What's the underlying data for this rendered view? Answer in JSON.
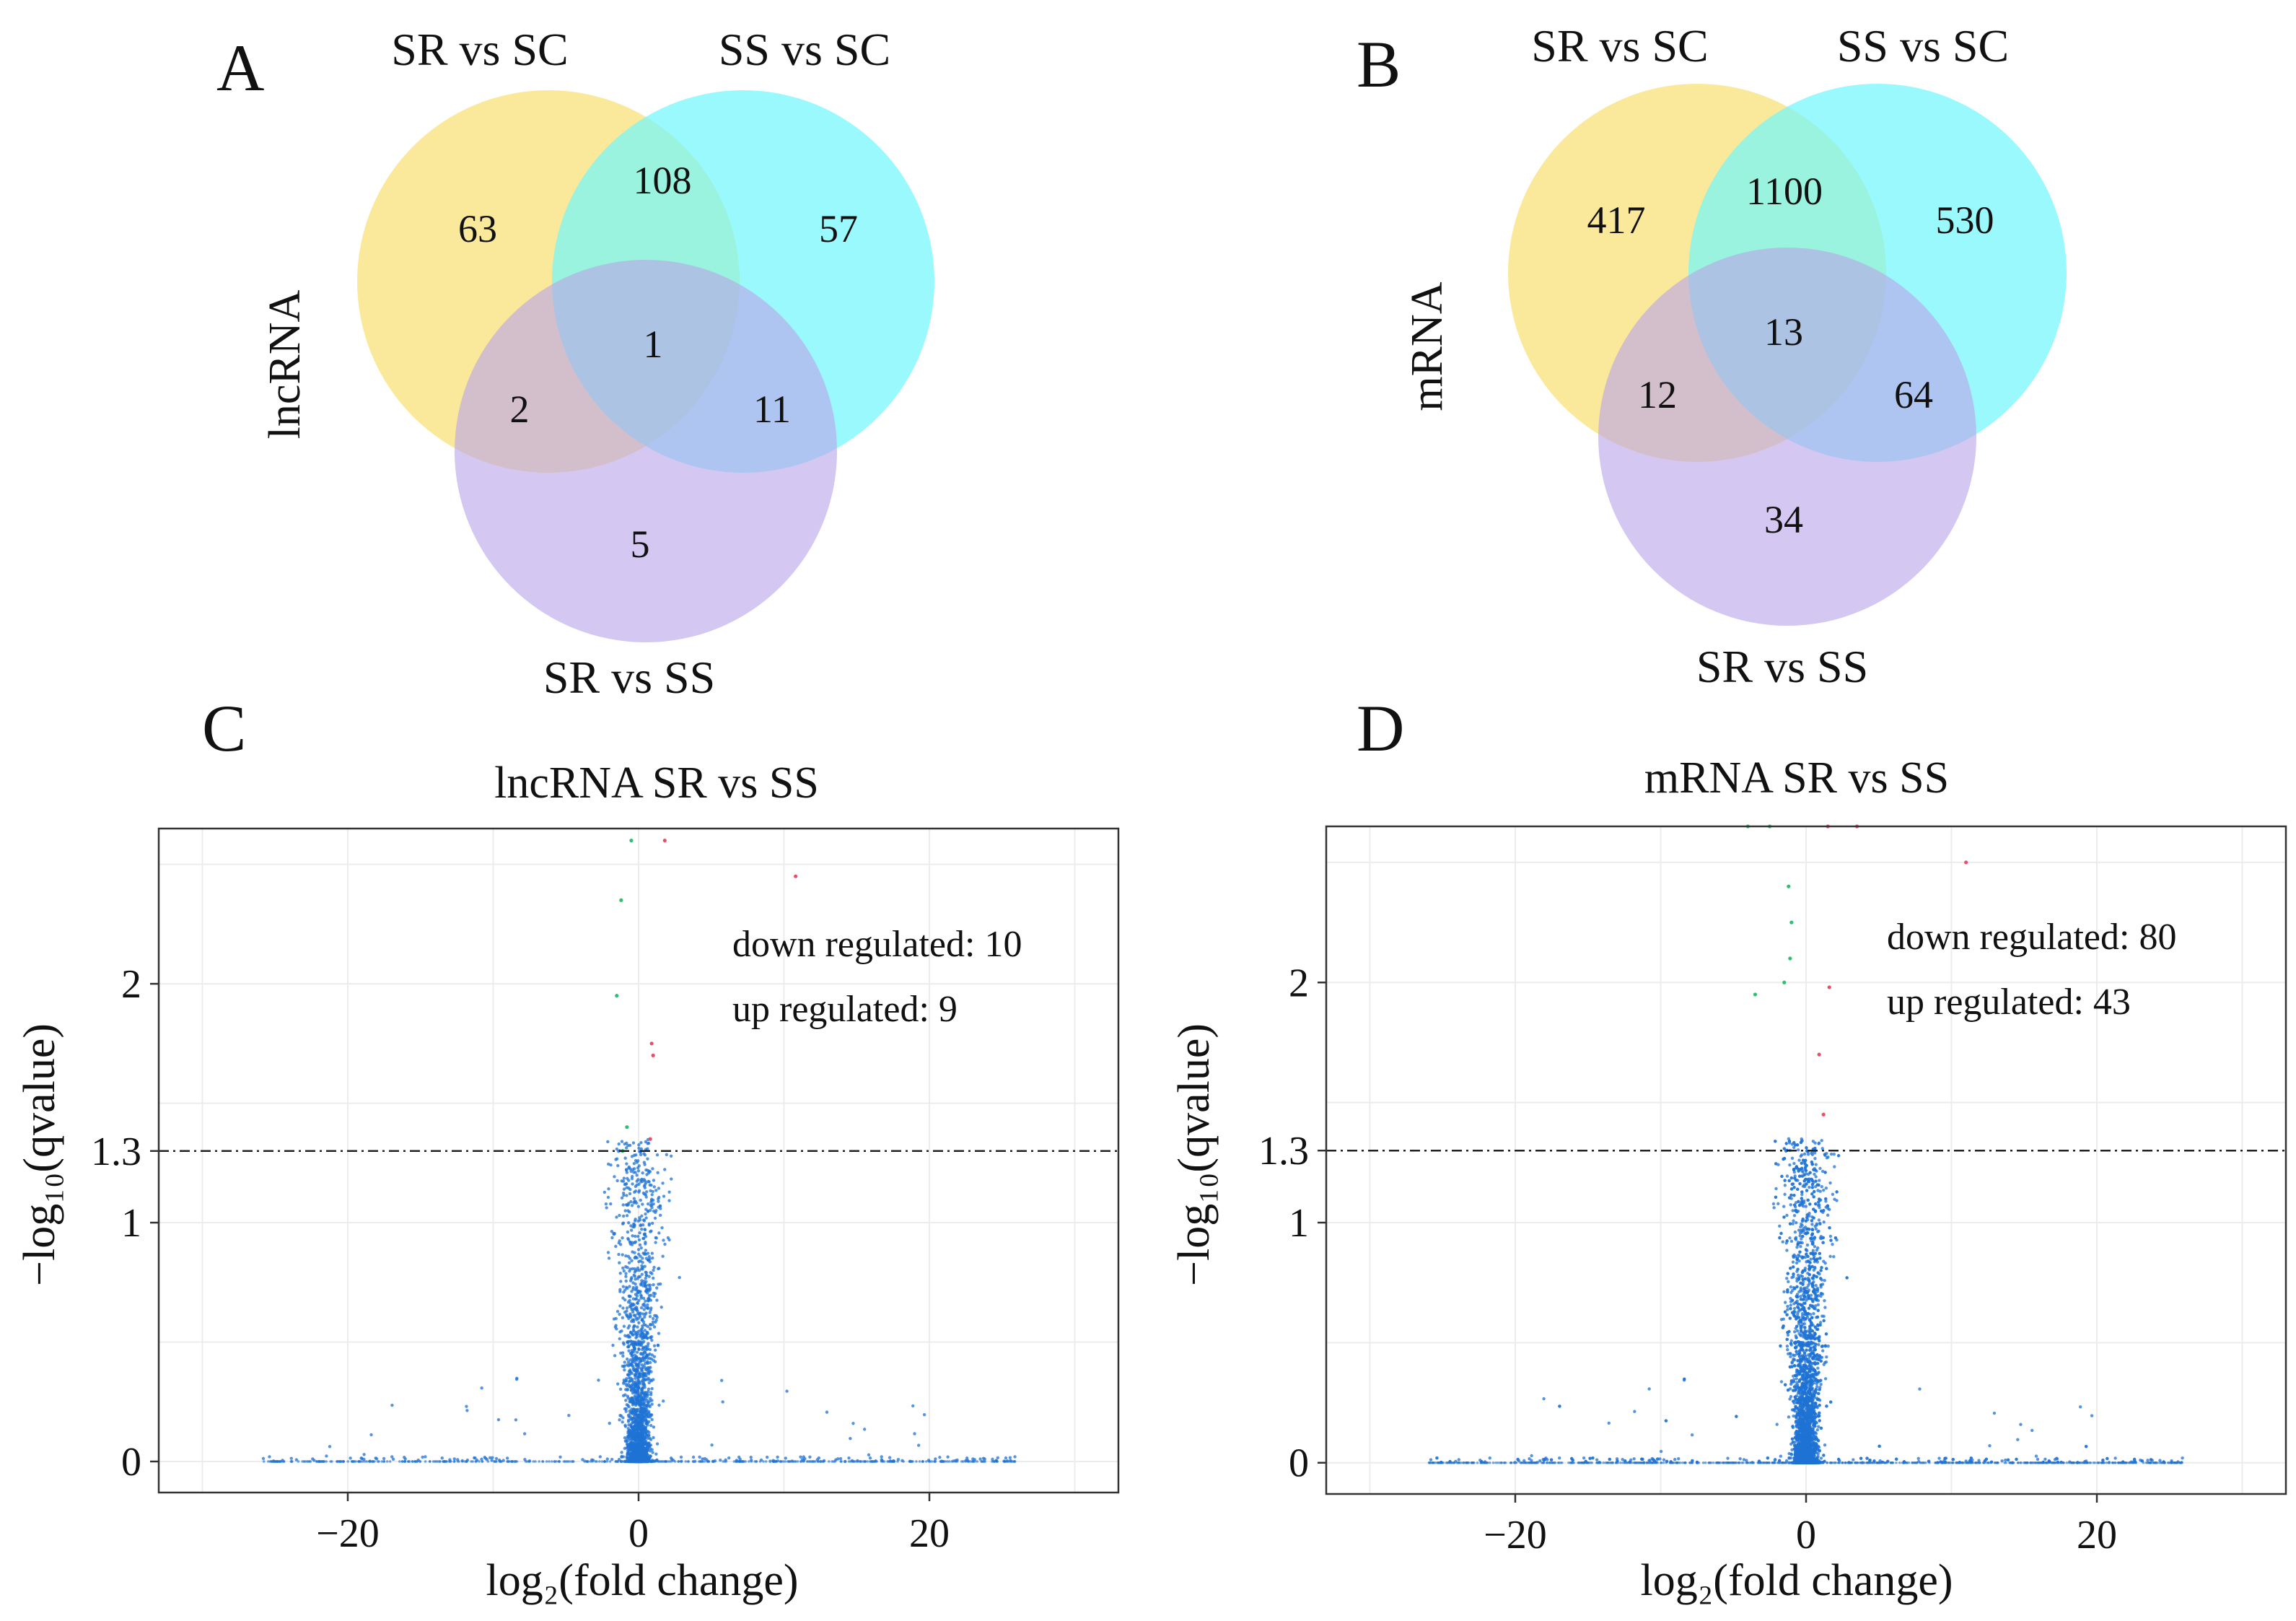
{
  "panels": {
    "A": {
      "letter": "A",
      "row_label": "lncRNA",
      "sets": [
        "SR vs SC",
        "SS vs SC",
        "SR vs SS"
      ],
      "counts": {
        "only_set1": "63",
        "set1_set2": "108",
        "only_set2": "57",
        "all_three": "1",
        "set1_set3": "2",
        "set2_set3": "11",
        "only_set3": "5"
      }
    },
    "B": {
      "letter": "B",
      "row_label": "mRNA",
      "sets": [
        "SR vs SC",
        "SS vs SC",
        "SR vs SS"
      ],
      "counts": {
        "only_set1": "417",
        "set1_set2": "1100",
        "only_set2": "530",
        "all_three": "13",
        "set1_set3": "12",
        "set2_set3": "64",
        "only_set3": "34"
      }
    },
    "C": {
      "letter": "C",
      "annotation_down": "down regulated: 10",
      "annotation_up": "up regulated: 9"
    },
    "D": {
      "letter": "D",
      "annotation_down": "down regulated: 80",
      "annotation_up": "up regulated: 43"
    }
  },
  "colors": {
    "set1": "#f9e27a",
    "set2": "#6ff6fb",
    "set3": "#b9a5e8",
    "point_ns": "#1f73d4",
    "point_down": "#2fbf71",
    "point_up": "#e8506a",
    "threshold": "#222222"
  },
  "chart_data": [
    {
      "type": "venn",
      "title": "",
      "label": "lncRNA",
      "sets": [
        "SR vs SC",
        "SS vs SC",
        "SR vs SS"
      ],
      "regions": {
        "SR vs SC only": 63,
        "SR vs SC & SS vs SC": 108,
        "SS vs SC only": 57,
        "all three": 1,
        "SR vs SC & SR vs SS": 2,
        "SS vs SC & SR vs SS": 11,
        "SR vs SS only": 5
      }
    },
    {
      "type": "venn",
      "title": "",
      "label": "mRNA",
      "sets": [
        "SR vs SC",
        "SS vs SC",
        "SR vs SS"
      ],
      "regions": {
        "SR vs SC only": 417,
        "SR vs SC & SS vs SC": 1100,
        "SS vs SC only": 530,
        "all three": 13,
        "SR vs SC & SR vs SS": 12,
        "SS vs SC & SR vs SS": 64,
        "SR vs SS only": 34
      }
    },
    {
      "type": "scatter",
      "title": "lncRNA SR vs SS",
      "xlabel": "log₂(fold change)",
      "ylabel": "−log₁₀(qvalue)",
      "xlim": [
        -33,
        33
      ],
      "ylim": [
        -0.13,
        2.65
      ],
      "xticks": [
        -20,
        0,
        20
      ],
      "yticks": [
        0,
        1,
        1.3,
        2
      ],
      "threshold_y": 1.3,
      "grid": true,
      "counts": {
        "down": 10,
        "up": 9
      },
      "series": [
        {
          "name": "not significant",
          "values": "dense cluster around x=0, y 0–1.3"
        },
        {
          "name": "down",
          "points": [
            [
              -1.2,
              2.35
            ],
            [
              -1.5,
              1.95
            ],
            [
              -0.8,
              1.4
            ],
            [
              -1.1,
              1.3
            ],
            [
              -0.5,
              2.6
            ]
          ]
        },
        {
          "name": "up",
          "points": [
            [
              1.8,
              2.6
            ],
            [
              10.8,
              2.45
            ],
            [
              0.9,
              1.75
            ],
            [
              1.0,
              1.7
            ],
            [
              0.8,
              1.35
            ]
          ]
        }
      ]
    },
    {
      "type": "scatter",
      "title": "mRNA SR vs SS",
      "xlabel": "log₂(fold change)",
      "ylabel": "−log₁₀(qvalue)",
      "xlim": [
        -33,
        33
      ],
      "ylim": [
        -0.13,
        2.65
      ],
      "xticks": [
        -20,
        0,
        20
      ],
      "yticks": [
        0,
        1,
        1.3,
        2
      ],
      "threshold_y": 1.3,
      "grid": true,
      "counts": {
        "down": 80,
        "up": 43
      },
      "series": [
        {
          "name": "not significant",
          "values": "dense cluster around x=0, y 0–1.3"
        },
        {
          "name": "down",
          "points": [
            [
              -4,
              2.65
            ],
            [
              -2.5,
              2.65
            ],
            [
              -1.2,
              2.4
            ],
            [
              -1.0,
              2.25
            ],
            [
              -1.1,
              2.1
            ],
            [
              -1.5,
              2.0
            ],
            [
              -3.5,
              1.95
            ]
          ]
        },
        {
          "name": "up",
          "points": [
            [
              1.5,
              2.65
            ],
            [
              3.5,
              2.65
            ],
            [
              11,
              2.5
            ],
            [
              1.6,
              1.98
            ],
            [
              0.9,
              1.7
            ],
            [
              1.2,
              1.45
            ]
          ]
        }
      ]
    }
  ]
}
